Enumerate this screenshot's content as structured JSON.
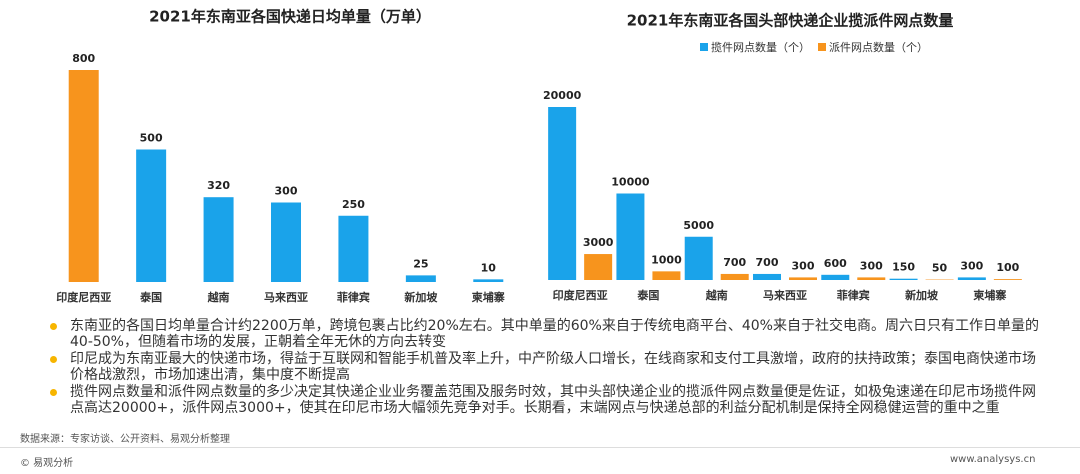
{
  "chart_data": [
    {
      "type": "bar",
      "title": "2021年东南亚各国快递日均单量（万单）",
      "categories": [
        "印度尼西亚",
        "泰国",
        "越南",
        "马来西亚",
        "菲律宾",
        "新加坡",
        "柬埔寨"
      ],
      "values": [
        800,
        500,
        320,
        300,
        250,
        25,
        10
      ],
      "colors": [
        "#f7941d",
        "#1aa3ea",
        "#1aa3ea",
        "#1aa3ea",
        "#1aa3ea",
        "#1aa3ea",
        "#1aa3ea"
      ]
    },
    {
      "type": "bar",
      "title": "2021年东南亚各国头部快递企业揽派件网点数量",
      "categories": [
        "印度尼西亚",
        "泰国",
        "越南",
        "马来西亚",
        "菲律宾",
        "新加坡",
        "柬埔寨"
      ],
      "series": [
        {
          "name": "揽件网点数量（个）",
          "color": "#1aa3ea",
          "values": [
            20000,
            10000,
            5000,
            700,
            600,
            150,
            300
          ]
        },
        {
          "name": "派件网点数量（个）",
          "color": "#f7941d",
          "values": [
            3000,
            1000,
            700,
            300,
            300,
            50,
            100
          ]
        }
      ]
    }
  ],
  "bullets": [
    "东南亚的各国日均单量合计约2200万单，跨境包裹占比约20%左右。其中单量的60%来自于传统电商平台、40%来自于社交电商。周六日只有工作日单量的40-50%，但随着市场的发展，正朝着全年无休的方向去转变",
    "印尼成为东南亚最大的快递市场，得益于互联网和智能手机普及率上升，中产阶级人口增长，在线商家和支付工具激增，政府的扶持政策；泰国电商快递市场价格战激烈，市场加速出清，集中度不断提高",
    "揽件网点数量和派件网点数量的多少决定其快递企业业务覆盖范围及服务时效，其中头部快递企业的揽派件网点数量便是佐证，如极兔速递在印尼市场揽件网点高达20000+，派件网点3000+，使其在印尼市场大幅领先竞争对手。长期看，末端网点与快递总部的利益分配机制是保持全网稳健运营的重中之重"
  ],
  "source": "数据来源：专家访谈、公开资料、易观分析整理",
  "footer": {
    "copyright": "© 易观分析",
    "url": "www.analysys.cn"
  }
}
